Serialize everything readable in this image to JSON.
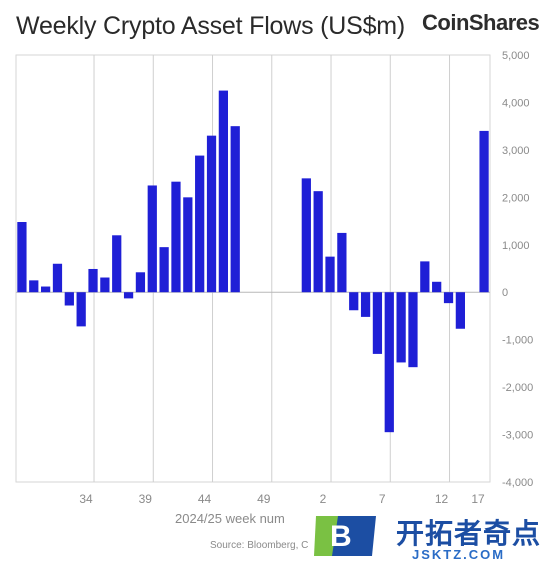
{
  "chart_data": {
    "type": "bar",
    "title": "Weekly Crypto Asset Flows (US$m)",
    "xlabel": "2024/25 week num",
    "ylabel": "",
    "ylim": [
      -4000,
      5000
    ],
    "yticks": [
      5000,
      4000,
      3000,
      2000,
      1000,
      0,
      -1000,
      -2000,
      -3000,
      -4000
    ],
    "ytick_labels": [
      "5,000",
      "4,000",
      "3,000",
      "2,000",
      "1,000",
      "0",
      "-1,000",
      "-2,000",
      "-3,000",
      "-4,000"
    ],
    "xtick_labels": [
      "34",
      "39",
      "44",
      "49",
      "2",
      "7",
      "12",
      "17"
    ],
    "grid": "vertical",
    "bar_color": "#1f1fd6",
    "series": [
      {
        "values": [
          1480,
          250,
          120,
          600,
          -280,
          -720,
          490,
          310,
          1200,
          -130,
          420,
          2250,
          950,
          2330,
          2000,
          2880,
          3300,
          4250,
          3500,
          0,
          0,
          0,
          0,
          0,
          2400,
          2130,
          750,
          1250,
          -380,
          -520,
          -1300,
          -2950,
          -1480,
          -1580,
          650,
          220,
          -230,
          -770,
          0,
          3400
        ]
      }
    ]
  },
  "header": {
    "brand": "CoinShares"
  },
  "footer": {
    "source": "Source: Bloomberg, C"
  },
  "watermark": {
    "main_text": "开拓者奇点",
    "sub_text": "JSKTZ.COM",
    "badge_letter": "B"
  }
}
